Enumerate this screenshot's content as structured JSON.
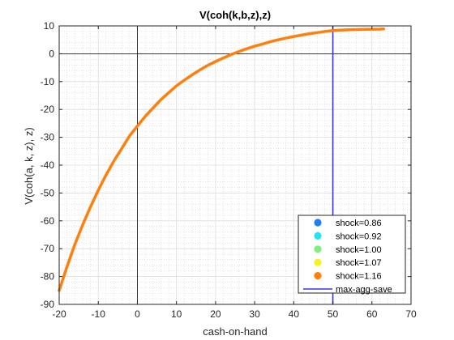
{
  "chart_data": {
    "type": "line",
    "title": "V(coh(k,b,z),z)",
    "xlabel": "cash-on-hand",
    "ylabel": "V(coh(a, k, z), z)",
    "xlim": [
      -20,
      70
    ],
    "ylim": [
      -90,
      10
    ],
    "xticks": [
      "-20",
      "-10",
      "0",
      "10",
      "20",
      "30",
      "40",
      "50",
      "60",
      "70"
    ],
    "yticks": [
      "10",
      "0",
      "-10",
      "-20",
      "-30",
      "-40",
      "-50",
      "-60",
      "-70",
      "-80",
      "-90"
    ],
    "grid": true,
    "minor_grid": true,
    "legend_position": "bottom-right",
    "reference_lines": {
      "x_zero": 0,
      "y_zero": 0,
      "vertical": {
        "x": 50,
        "name": "max-agg-save",
        "color": "#3333ff"
      }
    },
    "series": [
      {
        "name": "shock=0.86",
        "color": "#1e7ff2",
        "x": [],
        "y": []
      },
      {
        "name": "shock=0.92",
        "color": "#22e5f2",
        "x": [],
        "y": []
      },
      {
        "name": "shock=1.00",
        "color": "#7fef7f",
        "x": [],
        "y": []
      },
      {
        "name": "shock=1.07",
        "color": "#f5f21e",
        "x": [],
        "y": []
      },
      {
        "name": "shock=1.16",
        "color": "#ff7f0e",
        "x": [
          -20,
          -18,
          -16,
          -14,
          -12,
          -10,
          -8,
          -6,
          -4,
          -2,
          0,
          2,
          4,
          6,
          8,
          10,
          12,
          14,
          16,
          18,
          20,
          22,
          24,
          26,
          28,
          30,
          32,
          34,
          36,
          38,
          40,
          42,
          44,
          46,
          48,
          50,
          52,
          54,
          56,
          58,
          60,
          62,
          63
        ],
        "y": [
          -85,
          -76.5,
          -68.5,
          -61.5,
          -55,
          -49,
          -43.5,
          -38.5,
          -34,
          -29.5,
          -26,
          -22.5,
          -19.5,
          -16.5,
          -14,
          -11.5,
          -9.5,
          -7.6,
          -5.8,
          -4.2,
          -2.8,
          -1.5,
          -0.3,
          0.8,
          1.8,
          2.7,
          3.5,
          4.3,
          5,
          5.6,
          6.2,
          6.7,
          7.2,
          7.6,
          8,
          8.3,
          8.5,
          8.6,
          8.7,
          8.75,
          8.8,
          8.85,
          8.9
        ]
      }
    ]
  }
}
